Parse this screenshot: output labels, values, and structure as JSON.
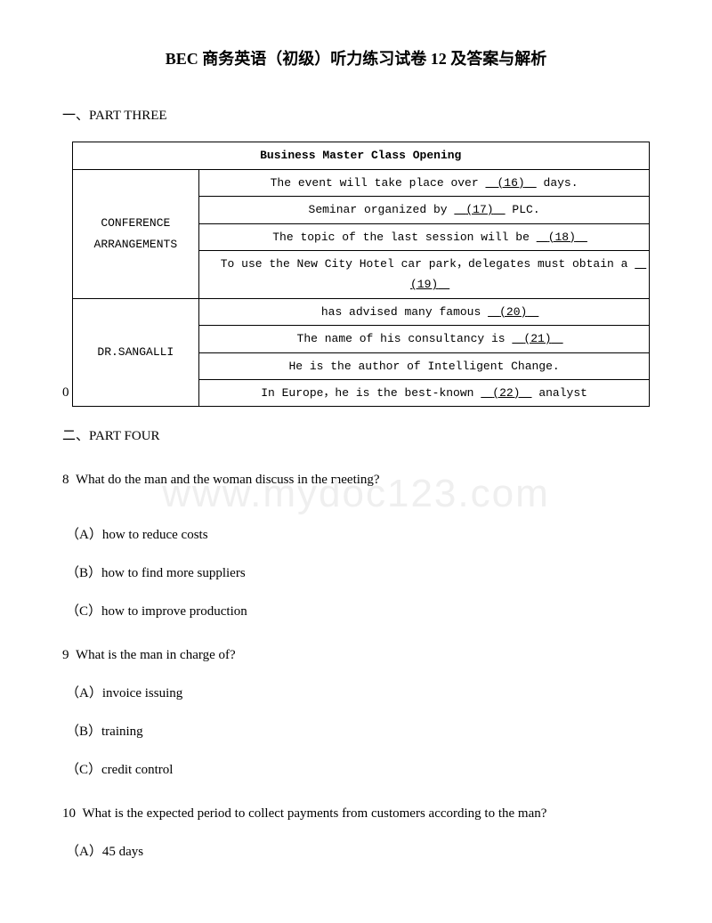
{
  "title": "BEC 商务英语（初级）听力练习试卷 12 及答案与解析",
  "section1": {
    "header": "一、PART THREE",
    "zero_prefix": "0",
    "table": {
      "header": "Business Master Class Opening",
      "row1_label": "CONFERENCE ARRANGEMENTS",
      "row1_cells": [
        {
          "pre": "The event will take place over ",
          "blank": "(16)",
          "post": " days."
        },
        {
          "pre": "Seminar organized by ",
          "blank": "(17)",
          "post": " PLC."
        },
        {
          "pre": "The topic of the last session will be ",
          "blank": "(18)",
          "post": ""
        },
        {
          "pre": "To use the New City Hotel car park，delegates must obtain a ",
          "blank": "(19)",
          "post": ""
        }
      ],
      "row2_label": "DR.SANGALLI",
      "row2_cells": [
        {
          "pre": "has advised many famous ",
          "blank": "(20)",
          "post": ""
        },
        {
          "pre": "The name of his consultancy is ",
          "blank": "(21)",
          "post": ""
        },
        {
          "pre": "He is the author of Intelligent Change.",
          "blank": "",
          "post": ""
        },
        {
          "pre": "In Europe，he is the best-known ",
          "blank": "(22)",
          "post": " analyst"
        }
      ]
    }
  },
  "section2": {
    "header": "二、PART FOUR",
    "questions": [
      {
        "num": "8",
        "text": "What do the man and the woman discuss in the meeting?",
        "options": [
          {
            "label": "（A）",
            "text": "how to reduce costs"
          },
          {
            "label": "（B）",
            "text": "how to find more suppliers"
          },
          {
            "label": "（C）",
            "text": "how to improve production"
          }
        ]
      },
      {
        "num": "9",
        "text": "What is the man in charge of?",
        "options": [
          {
            "label": "（A）",
            "text": "invoice issuing"
          },
          {
            "label": "（B）",
            "text": "training"
          },
          {
            "label": "（C）",
            "text": "credit control"
          }
        ]
      },
      {
        "num": "10",
        "text": "What is the expected period to collect payments from customers according to the man?",
        "options": [
          {
            "label": "（A）",
            "text": "45 days"
          }
        ]
      }
    ]
  },
  "watermark": "www.mydoc123.com"
}
